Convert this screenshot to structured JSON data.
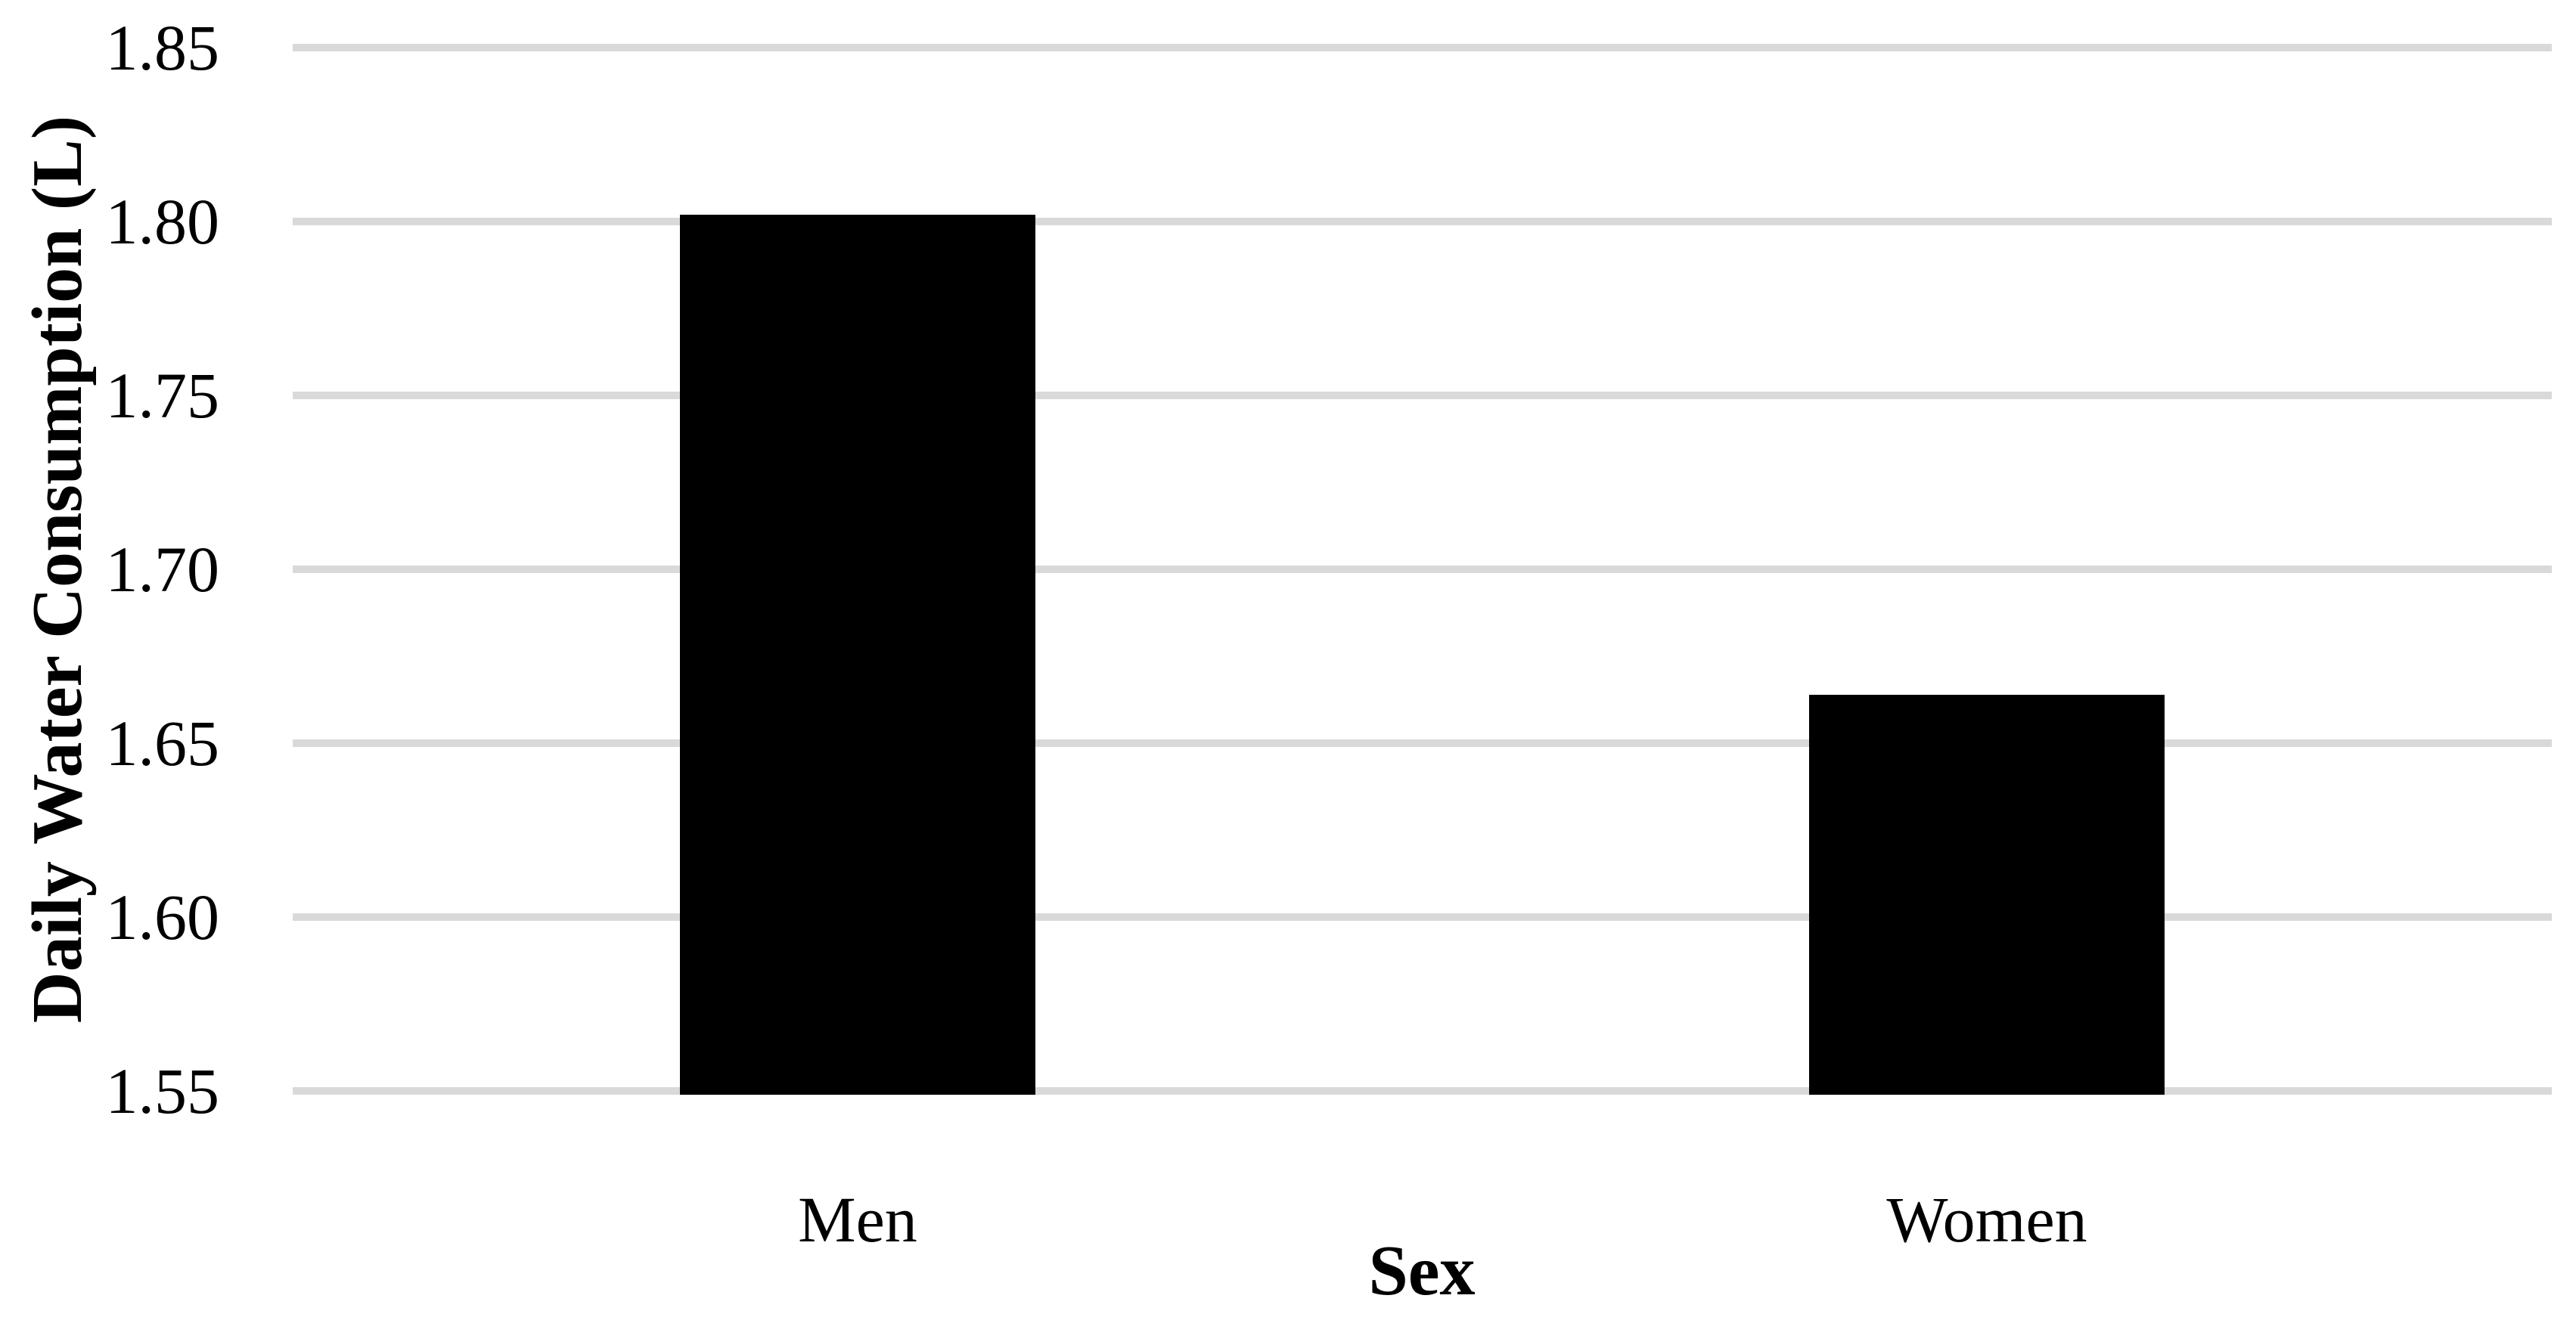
{
  "chart_data": {
    "type": "bar",
    "title": "",
    "categories": [
      "Men",
      "Women"
    ],
    "values": [
      1.802,
      1.664
    ],
    "xlabel": "Sex",
    "ylabel": "Daily Water Consumption (L)",
    "ylim": [
      1.55,
      1.85
    ],
    "ytick_step": 0.05,
    "ytick_decimals": 2,
    "ytick_labels": [
      "1.85",
      "1.80",
      "1.75",
      "1.70",
      "1.65",
      "1.60",
      "1.55"
    ],
    "grid": "horizontal-only",
    "legend": "none",
    "bar_color": "#000000",
    "gridline_color": "#D9D9D9",
    "text_color": "#000000",
    "background_color": "#FFFFFF"
  }
}
